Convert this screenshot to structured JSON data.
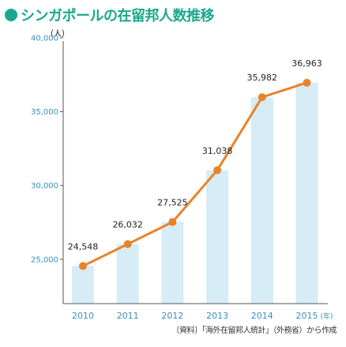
{
  "title": "シンガポールの在留邦人数推移",
  "unit_label": "（人）",
  "source": "〔資料〕「海外在留邦人統計」（外務省）から作成",
  "colors": {
    "accent": "#1aa88e",
    "line": "#e8832a",
    "bar": "#d6ecf7",
    "axis": "#555555",
    "tick_label": "#3a8fbf"
  },
  "chart_data": {
    "type": "line",
    "title": "シンガポールの在留邦人数推移",
    "xlabel": "",
    "ylabel": "（人）",
    "x_unit": "(年)",
    "categories": [
      "2010",
      "2011",
      "2012",
      "2013",
      "2014",
      "2015"
    ],
    "values": [
      24548,
      26032,
      27525,
      31038,
      35982,
      36963
    ],
    "data_labels": [
      "24,548",
      "26,032",
      "27,525",
      "31,038",
      "35,982",
      "36,963"
    ],
    "yticks": [
      25000,
      30000,
      35000,
      40000
    ],
    "ytick_labels": [
      "25,000",
      "30,000",
      "35,000",
      "40,000"
    ],
    "ylim": [
      22000,
      40000
    ],
    "background_bars": true,
    "grid": false,
    "legend": "none"
  }
}
